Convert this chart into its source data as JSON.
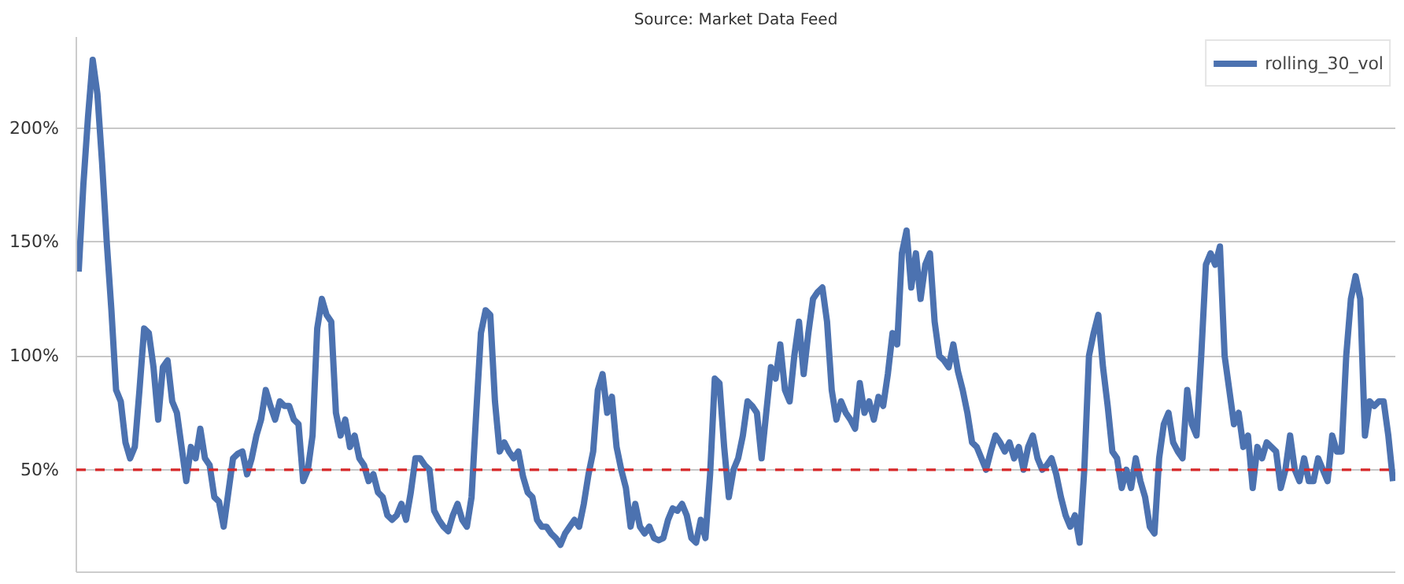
{
  "chart_data": {
    "type": "line",
    "annotations": [
      "Source: Market Data Feed"
    ],
    "categories": [
      null,
      null,
      null,
      null,
      null,
      null,
      null,
      null,
      null,
      null,
      null,
      null,
      null,
      null,
      null,
      null,
      null,
      null,
      null,
      null,
      null,
      null,
      null,
      null,
      null,
      null,
      null,
      null,
      null,
      null,
      null,
      null,
      null,
      null,
      null,
      null,
      null,
      null,
      null,
      null,
      null,
      null,
      null,
      null,
      null,
      null,
      null,
      null,
      null,
      null,
      null,
      null,
      null,
      null,
      null,
      null,
      null,
      null,
      null,
      null,
      null,
      null,
      null,
      null,
      null,
      null,
      null,
      null,
      null,
      null,
      null,
      null,
      null,
      null,
      null,
      null,
      null,
      null,
      null,
      null,
      null,
      null,
      null,
      null,
      null,
      null,
      null,
      null,
      null,
      null,
      null,
      null,
      null,
      null,
      null,
      null,
      null,
      null,
      null,
      null,
      null,
      null,
      null,
      null,
      null,
      null,
      null,
      null,
      null,
      null,
      null,
      null,
      null,
      null,
      null,
      null,
      null,
      null,
      null,
      null,
      null,
      null,
      null,
      null,
      null,
      null,
      null,
      null,
      null,
      null,
      null,
      null,
      null,
      null,
      null,
      null,
      null,
      null,
      null,
      null,
      null,
      null,
      null,
      null,
      null,
      null,
      null,
      null,
      null,
      null,
      null,
      null,
      null,
      null,
      null,
      null,
      null,
      null,
      null,
      null,
      null,
      null,
      null,
      null,
      null,
      null,
      null,
      null,
      null,
      null,
      null,
      null,
      null,
      null,
      null,
      null,
      null,
      null,
      null,
      null,
      null,
      null,
      null,
      null,
      null,
      null,
      null,
      null,
      null,
      null,
      null,
      null,
      null,
      null,
      null,
      null,
      null,
      null,
      null,
      null,
      null,
      null,
      null,
      null,
      null,
      null,
      null,
      null,
      null,
      null,
      null,
      null,
      null,
      null,
      null,
      null,
      null,
      null,
      null,
      null,
      null,
      null,
      null,
      null,
      null,
      null,
      null,
      null,
      null,
      null,
      null,
      null,
      null,
      null,
      null,
      null,
      null,
      null,
      null,
      null,
      null,
      null,
      null,
      null,
      null,
      null,
      null,
      null,
      null,
      null,
      null,
      null,
      null,
      null,
      null,
      null,
      null,
      null,
      null,
      null,
      null,
      null,
      null,
      null,
      null,
      null,
      null,
      null,
      null,
      null,
      null,
      null,
      null,
      null,
      null,
      null,
      null,
      null,
      null,
      null,
      null,
      null
    ],
    "series": [
      {
        "name": "rolling_30_vol",
        "color": "#4c72b0",
        "values": [
          137,
          175,
          205,
          230,
          215,
          185,
          150,
          120,
          85,
          80,
          62,
          55,
          60,
          85,
          112,
          110,
          95,
          72,
          95,
          98,
          80,
          75,
          60,
          45,
          60,
          55,
          68,
          55,
          52,
          38,
          36,
          25,
          40,
          55,
          57,
          58,
          48,
          55,
          65,
          72,
          85,
          78,
          72,
          80,
          78,
          78,
          72,
          70,
          45,
          50,
          65,
          112,
          125,
          118,
          115,
          75,
          65,
          72,
          60,
          65,
          55,
          52,
          45,
          48,
          40,
          38,
          30,
          28,
          30,
          35,
          28,
          40,
          55,
          55,
          52,
          50,
          32,
          28,
          25,
          23,
          30,
          35,
          28,
          25,
          38,
          75,
          110,
          120,
          118,
          80,
          58,
          62,
          58,
          55,
          58,
          47,
          40,
          38,
          28,
          25,
          25,
          22,
          20,
          17,
          22,
          25,
          28,
          25,
          35,
          48,
          58,
          85,
          92,
          75,
          82,
          60,
          50,
          42,
          25,
          35,
          25,
          22,
          25,
          20,
          19,
          20,
          28,
          33,
          32,
          35,
          30,
          20,
          18,
          28,
          20,
          48,
          90,
          88,
          60,
          38,
          50,
          55,
          65,
          80,
          78,
          75,
          55,
          75,
          95,
          90,
          105,
          85,
          80,
          100,
          115,
          92,
          110,
          125,
          128,
          130,
          115,
          85,
          72,
          80,
          75,
          72,
          68,
          88,
          75,
          80,
          72,
          82,
          78,
          92,
          110,
          105,
          145,
          155,
          130,
          145,
          125,
          140,
          145,
          115,
          100,
          98,
          95,
          105,
          93,
          85,
          75,
          62,
          60,
          55,
          50,
          58,
          65,
          62,
          58,
          62,
          55,
          60,
          50,
          60,
          65,
          55,
          50,
          52,
          55,
          48,
          38,
          30,
          25,
          30,
          18,
          50,
          100,
          110,
          118,
          95,
          78,
          58,
          55,
          42,
          50,
          42,
          55,
          45,
          38,
          25,
          22,
          55,
          70,
          75,
          62,
          58,
          55,
          85,
          70,
          65,
          100,
          140,
          145,
          140,
          148,
          100,
          85,
          70,
          75,
          60,
          65,
          42,
          60,
          55,
          62,
          60,
          58,
          42,
          50,
          65,
          50,
          45,
          55,
          45,
          45,
          55,
          50,
          45,
          65,
          58,
          58,
          100,
          125,
          135,
          125,
          65,
          80,
          78,
          80,
          80,
          65,
          45
        ]
      }
    ],
    "ylim": [
      5,
      240
    ],
    "yticks": [
      {
        "value": 50,
        "label": "50%"
      },
      {
        "value": 100,
        "label": "100%"
      },
      {
        "value": 150,
        "label": "150%"
      },
      {
        "value": 200,
        "label": "200%"
      }
    ],
    "ref_lines": [
      {
        "axis": "y",
        "value": 50,
        "label": null,
        "color": "#d62728",
        "line_style": "dashed"
      }
    ],
    "grid": "y",
    "legend": "top right",
    "tick_labels": "y",
    "marker": "none",
    "line_style": "solid"
  }
}
